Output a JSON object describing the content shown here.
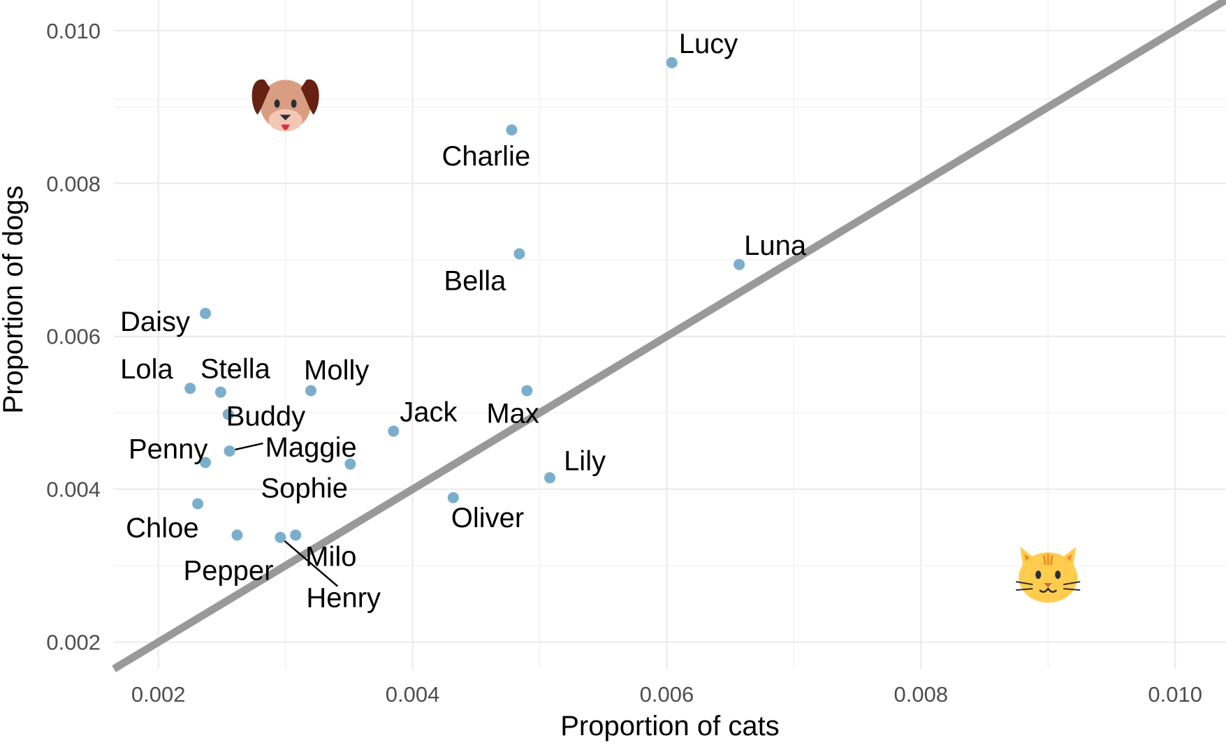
{
  "chart_data": {
    "type": "scatter",
    "xlabel": "Proportion of cats",
    "ylabel": "Proportion of dogs",
    "xlim": [
      0.00165,
      0.0104
    ],
    "ylim": [
      0.00165,
      0.0104
    ],
    "x_ticks": [
      "0.002",
      "0.004",
      "0.006",
      "0.008",
      "0.010"
    ],
    "y_ticks": [
      "0.002",
      "0.004",
      "0.006",
      "0.008",
      "0.010"
    ],
    "grid": true,
    "reference_line": {
      "slope": 1,
      "intercept": 0,
      "color": "#999999"
    },
    "point_color": "#6BA5C8",
    "icons": [
      {
        "name": "dog-face-icon",
        "x": 0.003,
        "y": 0.0091
      },
      {
        "name": "cat-face-icon",
        "x": 0.009,
        "y": 0.0029
      }
    ],
    "points": [
      {
        "label": "Lucy",
        "x": 0.00604,
        "y": 0.00958
      },
      {
        "label": "Charlie",
        "x": 0.00478,
        "y": 0.0087
      },
      {
        "label": "Bella",
        "x": 0.00484,
        "y": 0.00708
      },
      {
        "label": "Luna",
        "x": 0.00657,
        "y": 0.00694
      },
      {
        "label": "Daisy",
        "x": 0.00237,
        "y": 0.0063
      },
      {
        "label": "Lola",
        "x": 0.00225,
        "y": 0.00532
      },
      {
        "label": "Stella",
        "x": 0.00249,
        "y": 0.00527
      },
      {
        "label": "Molly",
        "x": 0.0032,
        "y": 0.00529
      },
      {
        "label": "Max",
        "x": 0.0049,
        "y": 0.00529
      },
      {
        "label": "Buddy",
        "x": 0.00255,
        "y": 0.00498
      },
      {
        "label": "Jack",
        "x": 0.00385,
        "y": 0.00476
      },
      {
        "label": "Maggie",
        "x": 0.00256,
        "y": 0.0045
      },
      {
        "label": "Sophie",
        "x": 0.00351,
        "y": 0.00433
      },
      {
        "label": "Penny",
        "x": 0.00237,
        "y": 0.00435
      },
      {
        "label": "Lily",
        "x": 0.00508,
        "y": 0.00415
      },
      {
        "label": "Oliver",
        "x": 0.00432,
        "y": 0.00389
      },
      {
        "label": "Chloe",
        "x": 0.00231,
        "y": 0.00381
      },
      {
        "label": "Pepper",
        "x": 0.00262,
        "y": 0.0034
      },
      {
        "label": "Henry",
        "x": 0.00296,
        "y": 0.00337
      },
      {
        "label": "Milo",
        "x": 0.00308,
        "y": 0.0034
      }
    ]
  }
}
